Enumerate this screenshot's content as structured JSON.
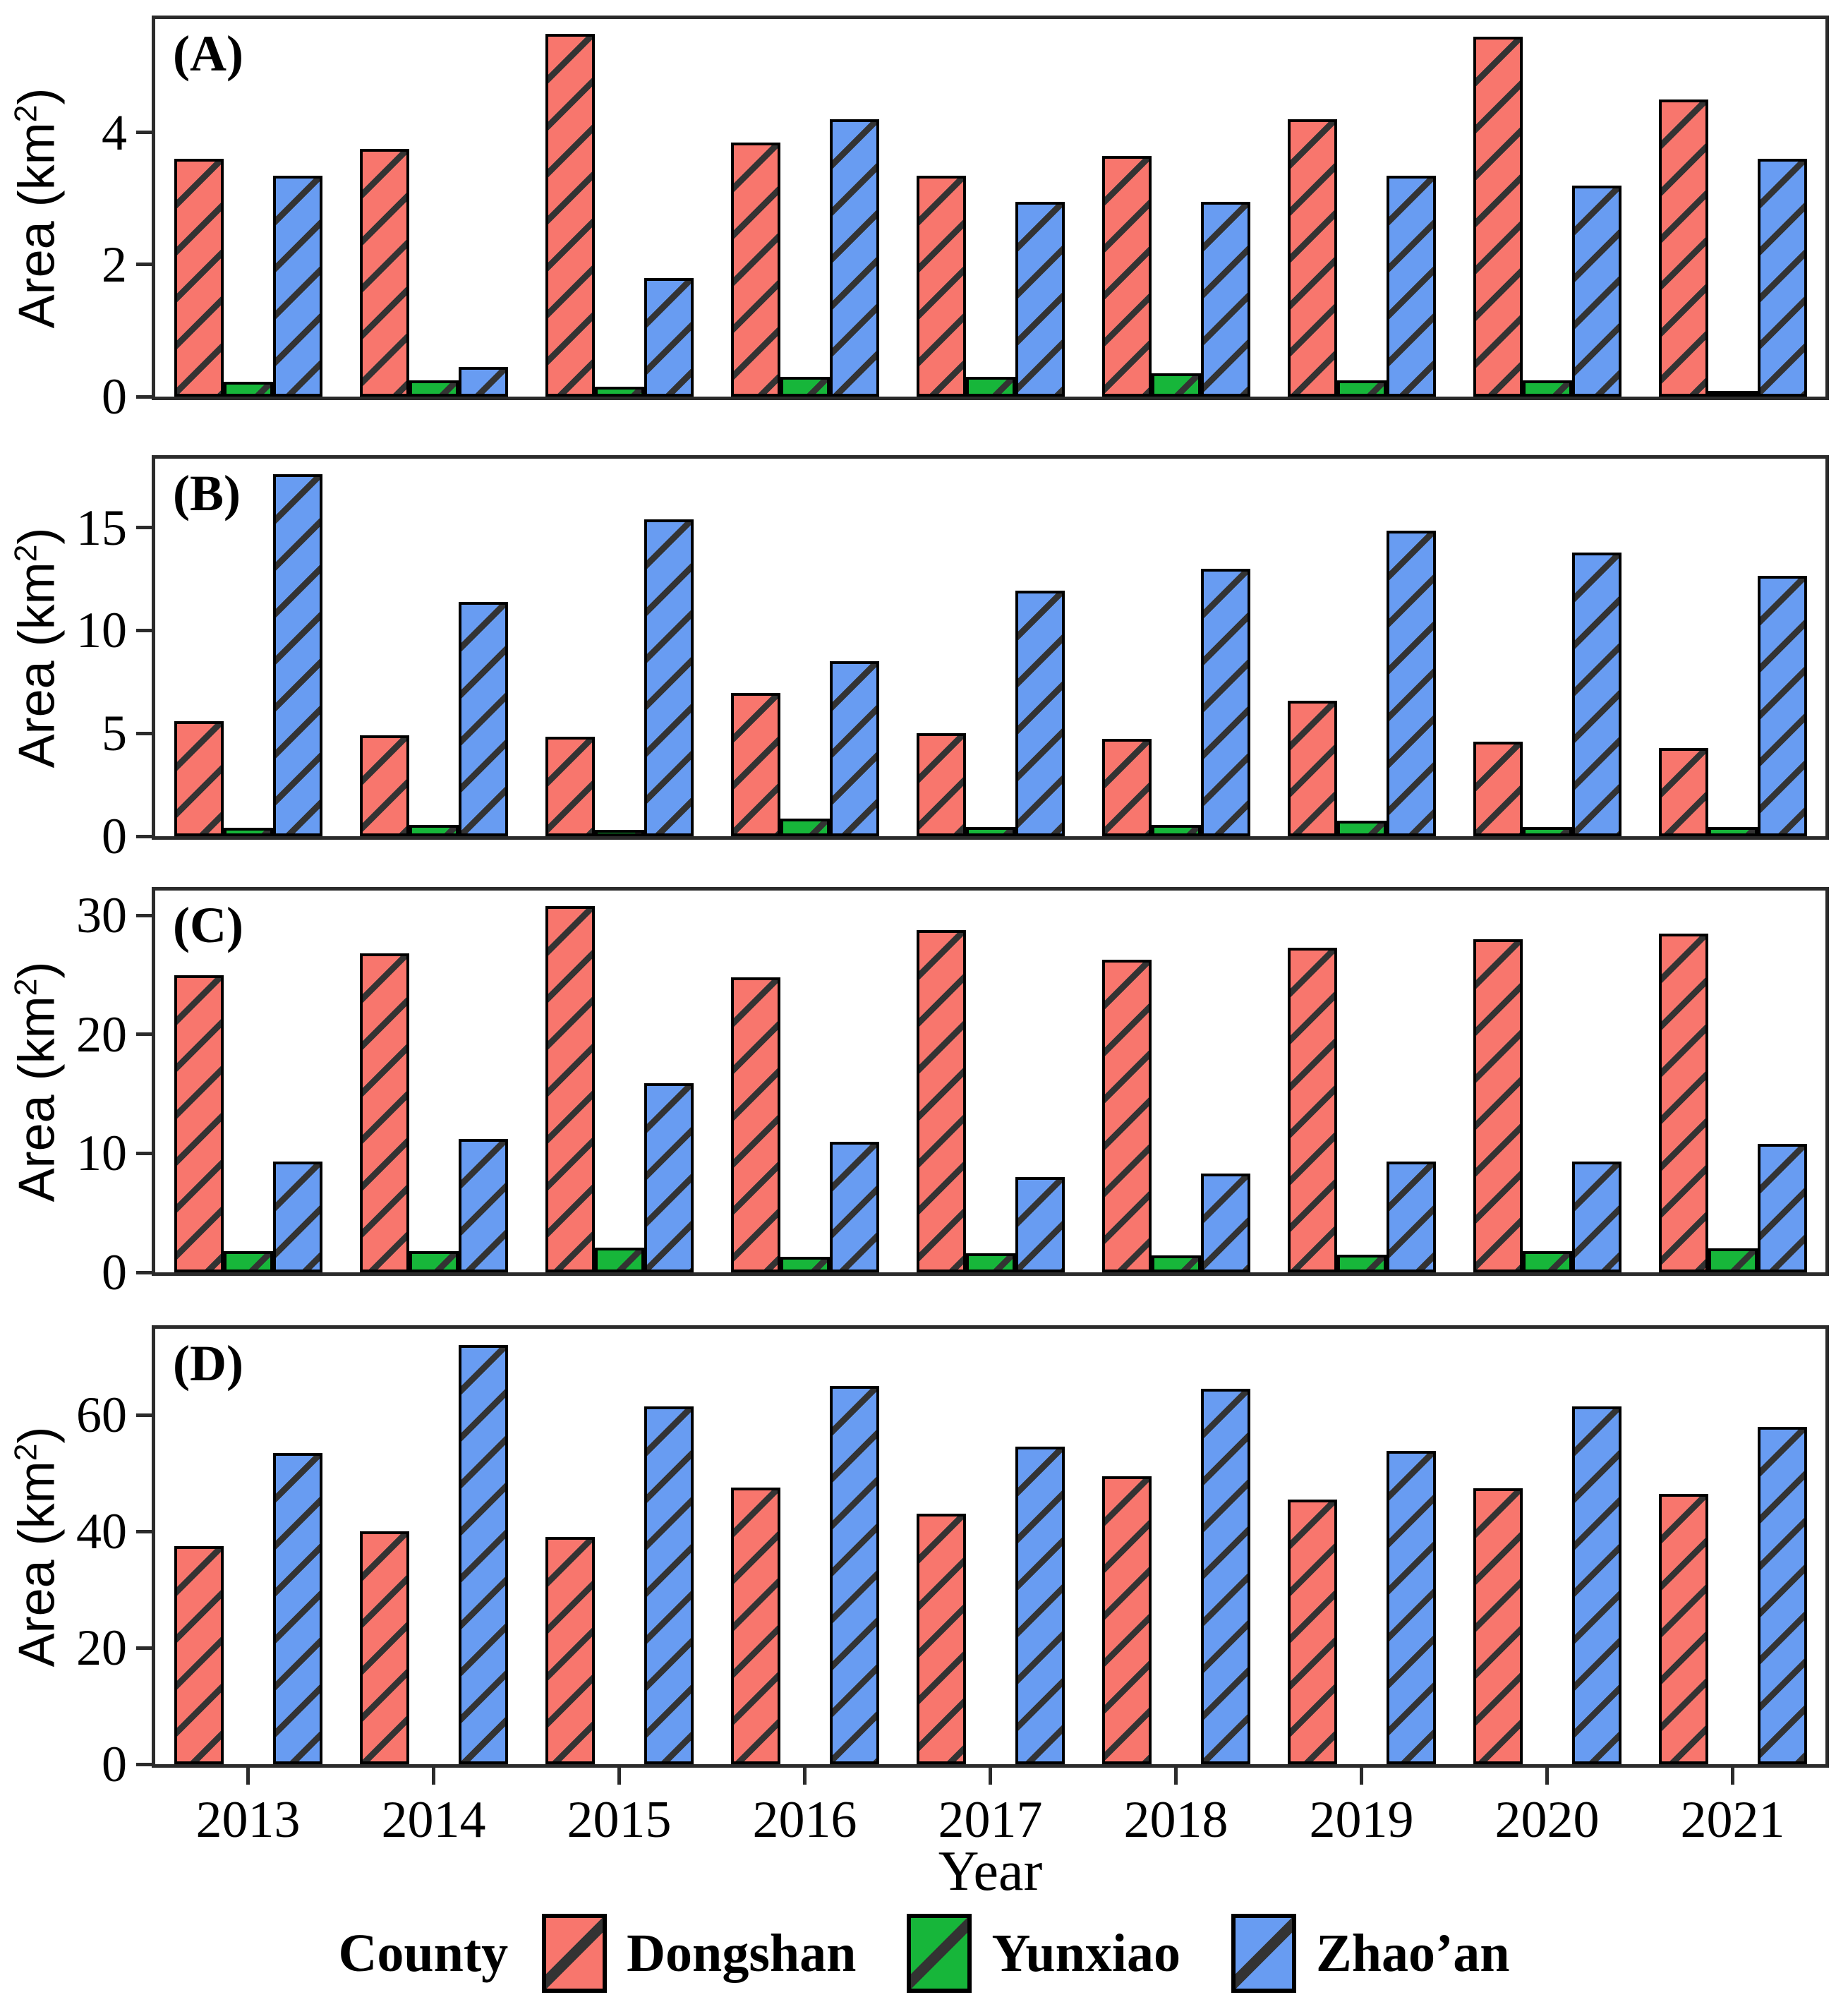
{
  "figure": {
    "y_axis_label_prefix": "Area (km",
    "y_axis_label_sup": "2",
    "y_axis_label_suffix": ")",
    "x_axis_label": "Year"
  },
  "legend": {
    "title": "County",
    "items": [
      {
        "label": "Dongshan",
        "color": "#f8766d"
      },
      {
        "label": "Yunxiao",
        "color": "#17b63a"
      },
      {
        "label": "Zhao’an",
        "color": "#689cf2"
      }
    ]
  },
  "colors": {
    "dongshan": "#f8766d",
    "yunxiao": "#17b63a",
    "zhaoan": "#689cf2",
    "bar_outline": "#000000",
    "hatch": "#333333",
    "panel_border": "#2b2b2b"
  },
  "chart_data": [
    {
      "type": "bar",
      "panel_label": "(A)",
      "title": "",
      "xlabel": "Year",
      "ylabel": "Area (km2)",
      "grid": false,
      "legend_position": "bottom",
      "categories": [
        "2013",
        "2014",
        "2015",
        "2016",
        "2017",
        "2018",
        "2019",
        "2020",
        "2021"
      ],
      "series": [
        {
          "name": "Dongshan",
          "color": "#f8766d",
          "values": [
            3.6,
            3.75,
            5.5,
            3.85,
            3.35,
            3.65,
            4.2,
            5.45,
            4.5
          ]
        },
        {
          "name": "Yunxiao",
          "color": "#17b63a",
          "values": [
            0.22,
            0.25,
            0.15,
            0.3,
            0.3,
            0.35,
            0.25,
            0.25,
            0.05
          ]
        },
        {
          "name": "Zhao'an",
          "color": "#689cf2",
          "values": [
            3.35,
            0.45,
            1.8,
            4.2,
            2.95,
            2.95,
            3.35,
            3.2,
            3.6
          ]
        }
      ],
      "yticks": [
        "0",
        "2",
        "4"
      ],
      "ytick_values": [
        0,
        2,
        4
      ],
      "ylim": [
        0,
        5.72
      ]
    },
    {
      "type": "bar",
      "panel_label": "(B)",
      "title": "",
      "xlabel": "Year",
      "ylabel": "Area (km2)",
      "grid": false,
      "legend_position": "bottom",
      "categories": [
        "2013",
        "2014",
        "2015",
        "2016",
        "2017",
        "2018",
        "2019",
        "2020",
        "2021"
      ],
      "series": [
        {
          "name": "Dongshan",
          "color": "#f8766d",
          "values": [
            5.6,
            4.9,
            4.85,
            6.95,
            5.0,
            4.75,
            6.6,
            4.6,
            4.3
          ]
        },
        {
          "name": "Yunxiao",
          "color": "#17b63a",
          "values": [
            0.4,
            0.55,
            0.3,
            0.85,
            0.45,
            0.55,
            0.75,
            0.45,
            0.45
          ]
        },
        {
          "name": "Zhao'an",
          "color": "#689cf2",
          "values": [
            17.6,
            11.4,
            15.4,
            8.5,
            11.95,
            13.0,
            14.85,
            13.8,
            12.65
          ]
        }
      ],
      "yticks": [
        "0",
        "5",
        "10",
        "15"
      ],
      "ytick_values": [
        0,
        5,
        10,
        15
      ],
      "ylim": [
        0,
        18.35
      ]
    },
    {
      "type": "bar",
      "panel_label": "(C)",
      "title": "",
      "xlabel": "Year",
      "ylabel": "Area (km2)",
      "grid": false,
      "legend_position": "bottom",
      "categories": [
        "2013",
        "2014",
        "2015",
        "2016",
        "2017",
        "2018",
        "2019",
        "2020",
        "2021"
      ],
      "series": [
        {
          "name": "Dongshan",
          "color": "#f8766d",
          "values": [
            25.0,
            26.8,
            30.8,
            24.8,
            28.8,
            26.3,
            27.3,
            28.0,
            28.5
          ]
        },
        {
          "name": "Yunxiao",
          "color": "#17b63a",
          "values": [
            1.8,
            1.8,
            2.1,
            1.3,
            1.6,
            1.4,
            1.5,
            1.8,
            2.0
          ]
        },
        {
          "name": "Zhao'an",
          "color": "#689cf2",
          "values": [
            9.3,
            11.2,
            15.9,
            11.0,
            8.0,
            8.3,
            9.3,
            9.3,
            10.8
          ]
        }
      ],
      "yticks": [
        "0",
        "10",
        "20",
        "30"
      ],
      "ytick_values": [
        0,
        10,
        20,
        30
      ],
      "ylim": [
        0,
        32.1
      ]
    },
    {
      "type": "bar",
      "panel_label": "(D)",
      "title": "",
      "xlabel": "Year",
      "ylabel": "Area (km2)",
      "grid": false,
      "legend_position": "bottom",
      "categories": [
        "2013",
        "2014",
        "2015",
        "2016",
        "2017",
        "2018",
        "2019",
        "2020",
        "2021"
      ],
      "series": [
        {
          "name": "Dongshan",
          "color": "#f8766d",
          "values": [
            37.5,
            40.0,
            39.0,
            47.5,
            43.0,
            49.5,
            45.5,
            47.4,
            46.4
          ]
        },
        {
          "name": "Yunxiao",
          "color": "#17b63a",
          "values": [
            0,
            0,
            0,
            0,
            0,
            0,
            0,
            0,
            0
          ]
        },
        {
          "name": "Zhao'an",
          "color": "#689cf2",
          "values": [
            53.5,
            72.0,
            61.5,
            65.0,
            54.5,
            64.5,
            53.8,
            61.5,
            58.0
          ]
        }
      ],
      "yticks": [
        "0",
        "20",
        "40",
        "60"
      ],
      "ytick_values": [
        0,
        20,
        40,
        60
      ],
      "ylim": [
        0,
        74.8
      ]
    }
  ]
}
